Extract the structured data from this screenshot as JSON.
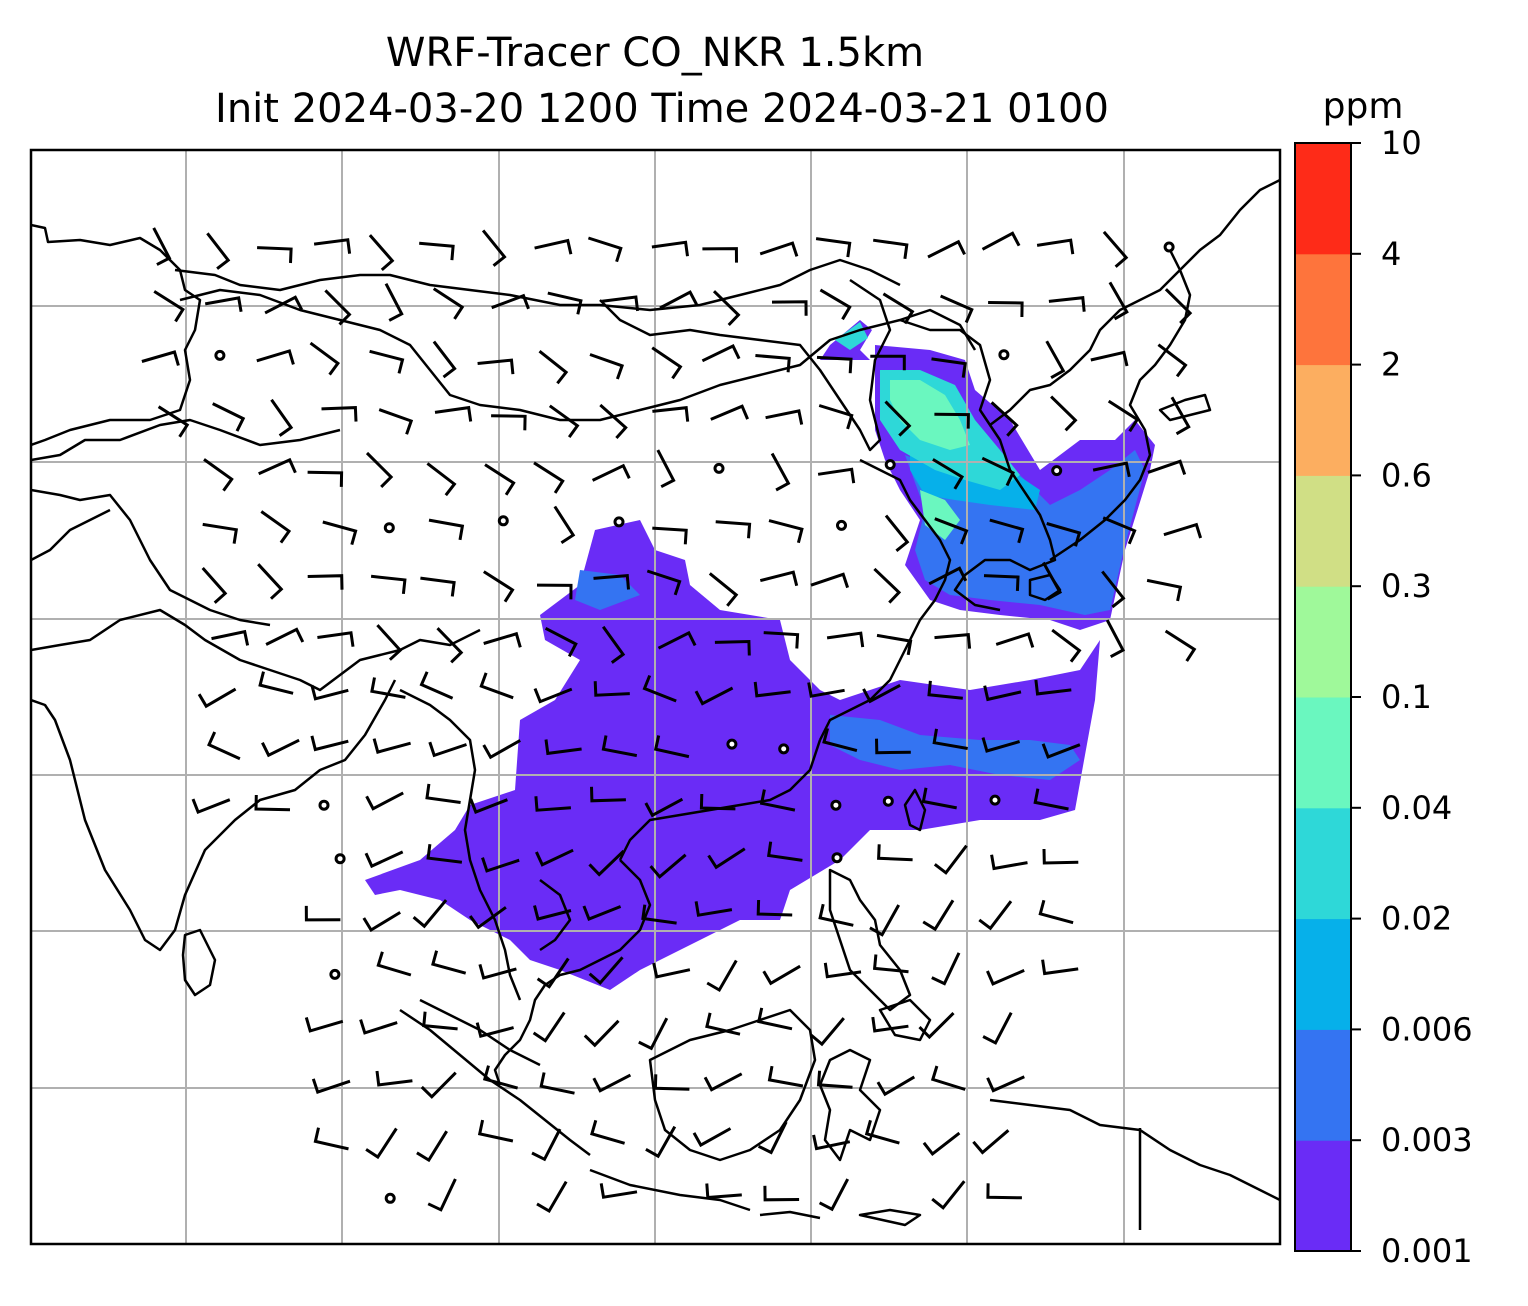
{
  "title": {
    "line1": "WRF-Tracer CO_NKR 1.5km",
    "line2": "Init 2024-03-20 1200 Time 2024-03-21 0100"
  },
  "colorbar": {
    "unit": "ppm",
    "levels": [
      "0.001",
      "0.003",
      "0.006",
      "0.02",
      "0.04",
      "0.1",
      "0.3",
      "0.6",
      "2",
      "4",
      "10"
    ],
    "colors": [
      "#6a2cf6",
      "#3474f2",
      "#06b0ea",
      "#2ed8d8",
      "#6af7bf",
      "#9ff99a",
      "#d0df85",
      "#fcae60",
      "#fe743c",
      "#fe2b18"
    ]
  },
  "chart_data": {
    "type": "heatmap",
    "variable": "CO_NKR tracer",
    "unit": "ppm",
    "color_levels": [
      0.001,
      0.003,
      0.006,
      0.02,
      0.04,
      0.1,
      0.3,
      0.6,
      2,
      4,
      10
    ],
    "overlays": [
      "coastlines",
      "country borders",
      "lat/lon gridlines",
      "wind barbs",
      "calm wind circles"
    ],
    "grid": true,
    "legend_placement": "right colorbar"
  }
}
